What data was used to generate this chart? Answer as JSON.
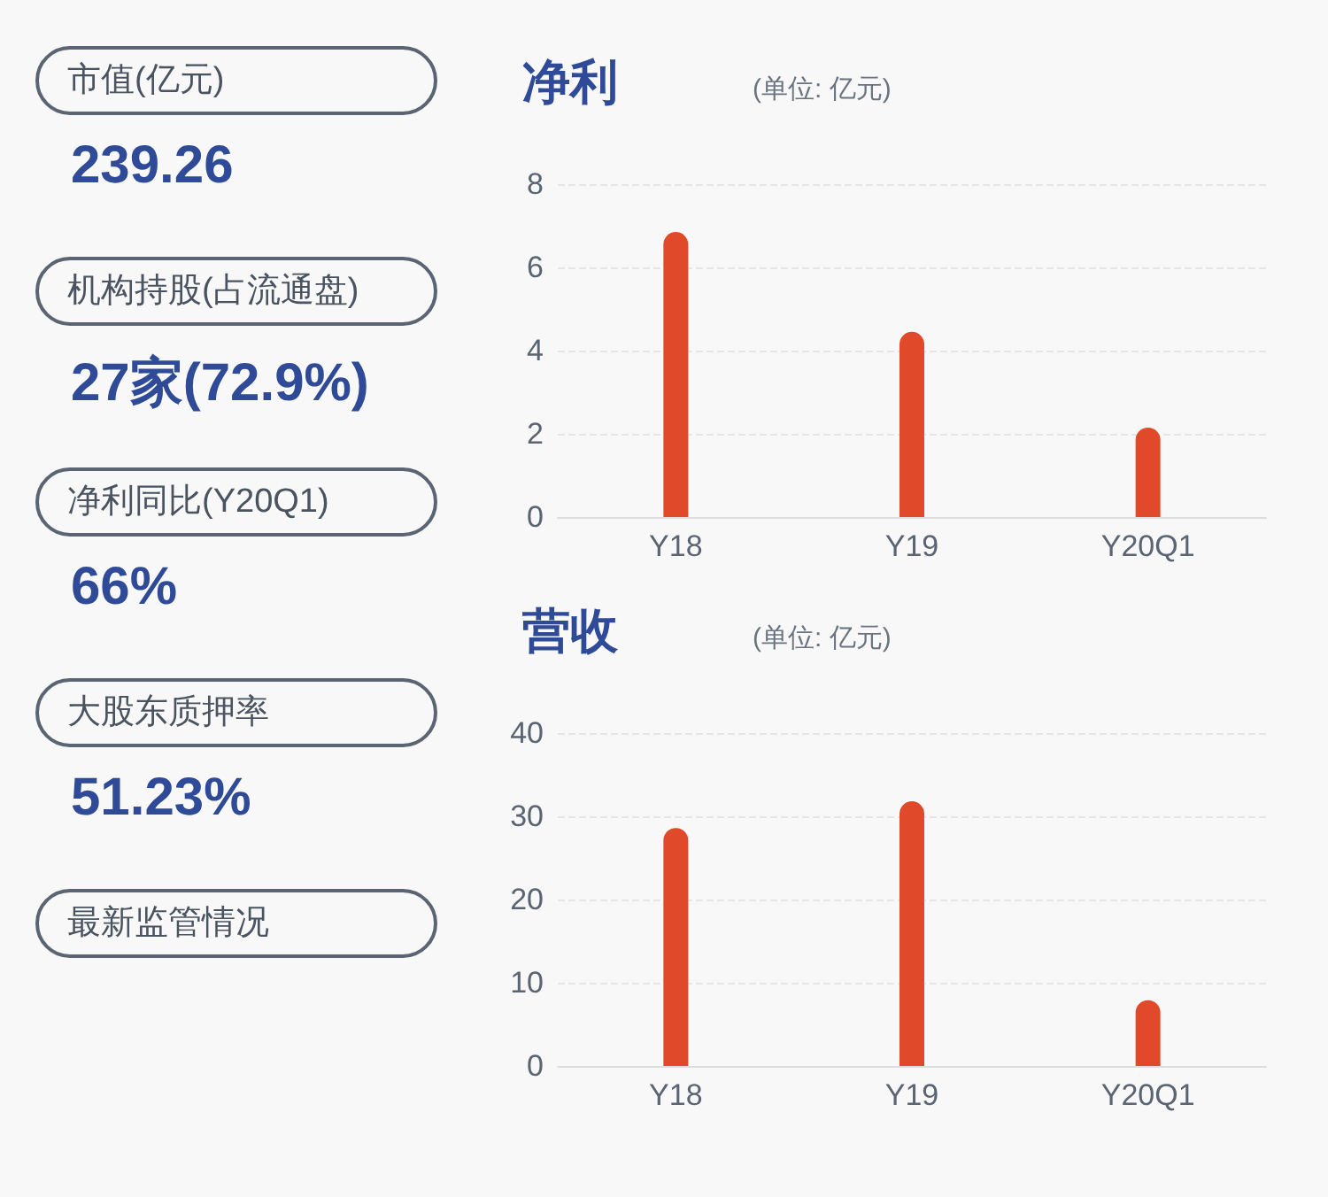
{
  "chart_data": [
    {
      "type": "other",
      "annotations": [
        "市值(亿元)",
        "239.26",
        "机构持股(占流通盘)",
        "27家(72.9%)",
        "净利同比(Y20Q1)",
        "66%",
        "大股东质押率",
        "51.23%",
        "最新监管情况"
      ]
    },
    {
      "type": "bar",
      "title": "净利",
      "subtitle": "(单位: 亿元)",
      "categories": [
        "Y18",
        "Y19",
        "Y20Q1"
      ],
      "values": [
        6.85,
        4.45,
        2.15
      ],
      "color": "#e04a2b",
      "ylim": [
        0,
        8
      ],
      "yticks": [
        0,
        2,
        4,
        6,
        8
      ],
      "grid": "y"
    },
    {
      "type": "bar",
      "title": "营收",
      "subtitle": "(单位: 亿元)",
      "categories": [
        "Y18",
        "Y19",
        "Y20Q1"
      ],
      "values": [
        28.6,
        31.8,
        7.9
      ],
      "color": "#e04a2b",
      "ylim": [
        0,
        40
      ],
      "yticks": [
        0,
        10,
        20,
        30,
        40
      ],
      "grid": "y"
    }
  ]
}
